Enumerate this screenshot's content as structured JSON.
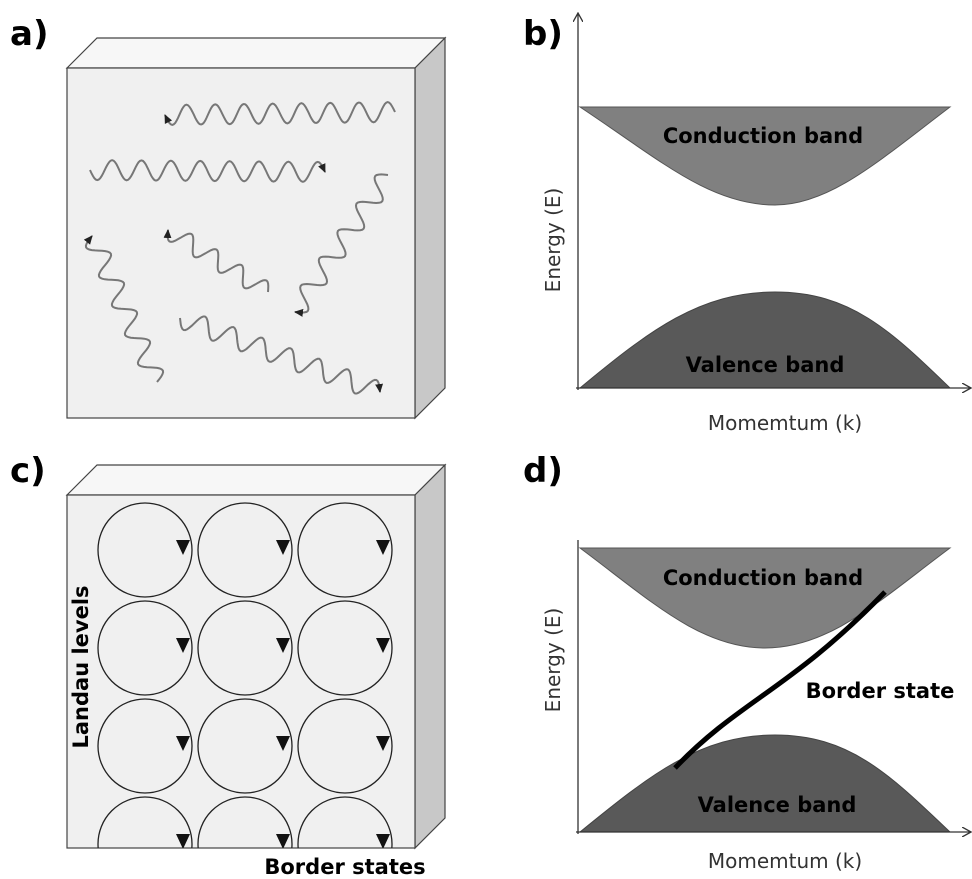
{
  "panels": {
    "a": {
      "label": "a)"
    },
    "b": {
      "label": "b)",
      "conduction": "Conduction band",
      "valence": "Valence band",
      "y_label": "Energy (E)",
      "x_label": "Momemtum  (k)"
    },
    "c": {
      "label": "c)",
      "landau": "Landau levels",
      "border": "Border states"
    },
    "d": {
      "label": "d)",
      "conduction": "Conduction band",
      "valence": "Valence band",
      "border": "Border state",
      "y_label": "Energy (E)",
      "x_label": "Momemtum  (k)"
    }
  }
}
